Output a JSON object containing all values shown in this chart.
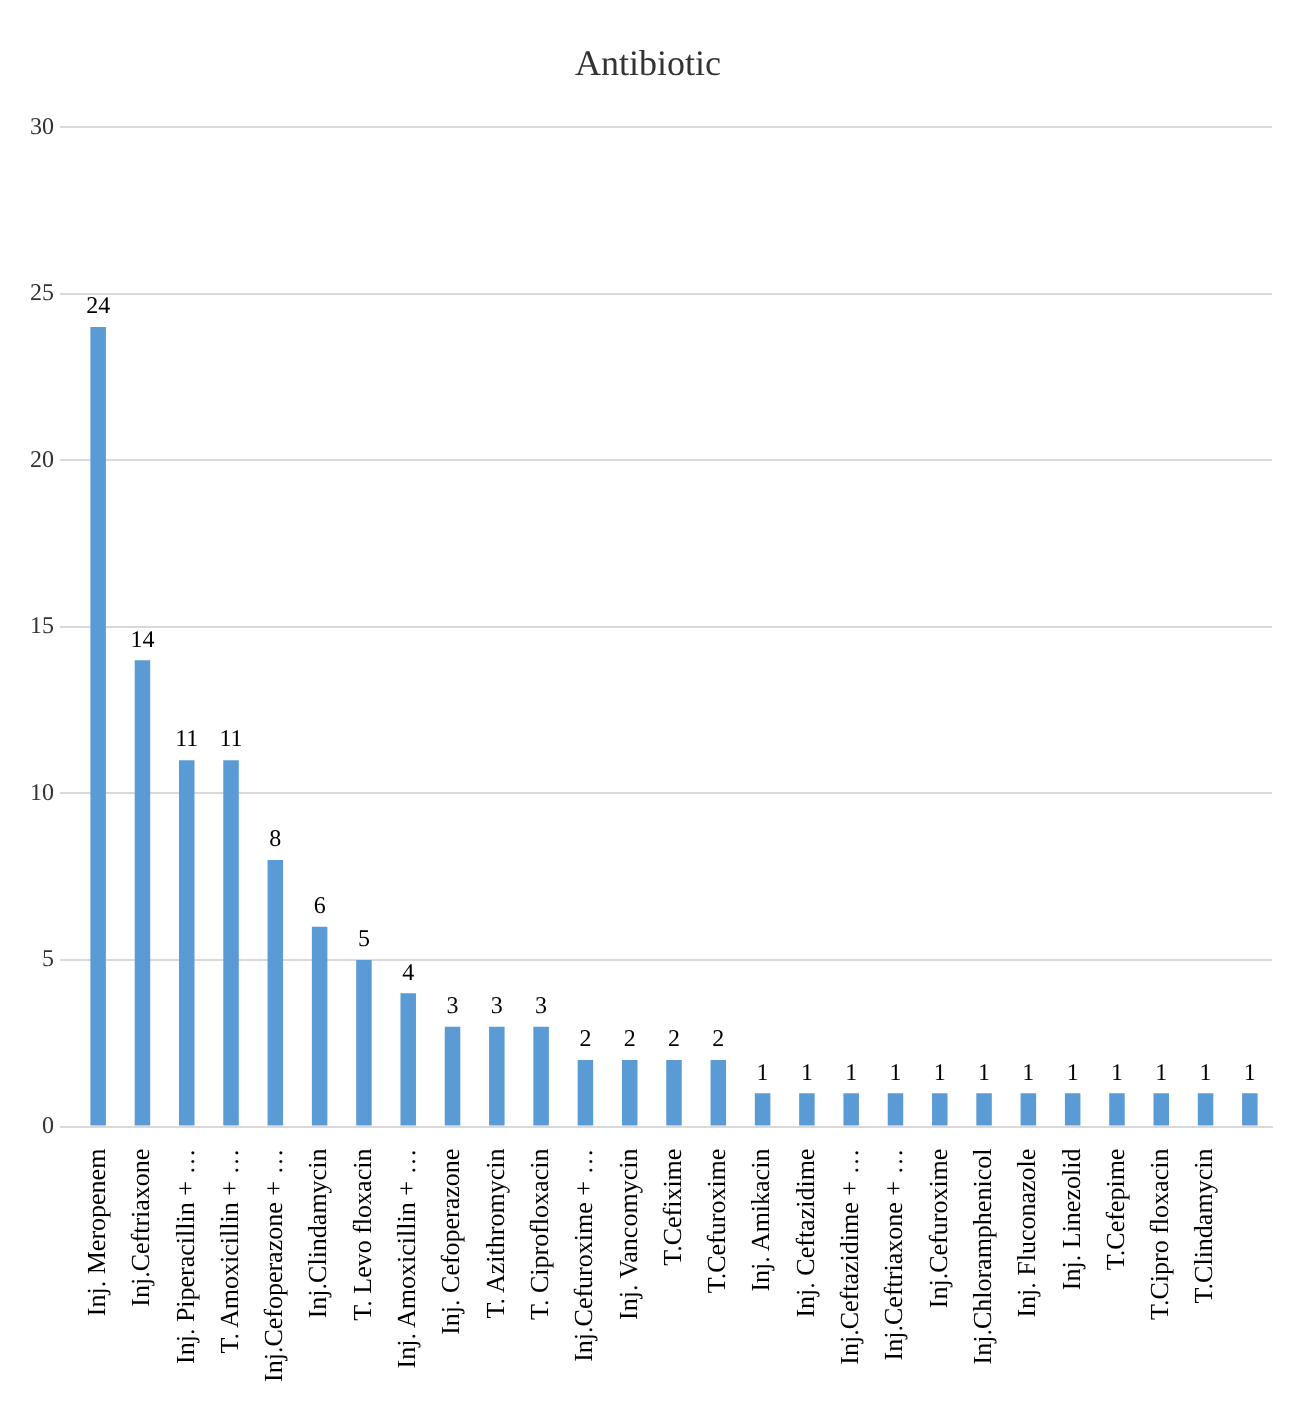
{
  "chart_data": {
    "type": "bar",
    "title": "Antibiotic",
    "categories": [
      "Inj. Meropenem",
      "Inj.Ceftriaxone",
      "Inj. Piperacillin + …",
      "T. Amoxicillin + …",
      "Inj.Cefoperazone + …",
      "Inj.Clindamycin",
      "T. Levo floxacin",
      "Inj. Amoxicillin + …",
      "Inj. Cefoperazone",
      "T. Azithromycin",
      "T. Ciprofloxacin",
      "Inj.Cefuroxime + …",
      "Inj. Vancomycin",
      "T.Cefixime",
      "T.Cefuroxime",
      "Inj. Amikacin",
      "Inj. Ceftazidime",
      "Inj.Ceftazidime + …",
      "Inj.Ceftriaxone + …",
      "Inj.Cefuroxime",
      "Inj.Chloramphenicol",
      "Inj. Fluconazole",
      "Inj. Linezolid",
      "T.Cefepime",
      "T.Cipro floxacin",
      "T.Clindamycin",
      null
    ],
    "values": [
      24,
      14,
      11,
      11,
      8,
      6,
      5,
      4,
      3,
      3,
      3,
      2,
      2,
      2,
      2,
      1,
      1,
      1,
      1,
      1,
      1,
      1,
      1,
      1,
      1,
      1,
      1
    ],
    "color": "#5b9bd5",
    "ylim": [
      0,
      30
    ],
    "yticks": [
      0,
      5,
      10,
      15,
      20,
      25,
      30
    ],
    "grid": "y",
    "data_labels": true
  }
}
